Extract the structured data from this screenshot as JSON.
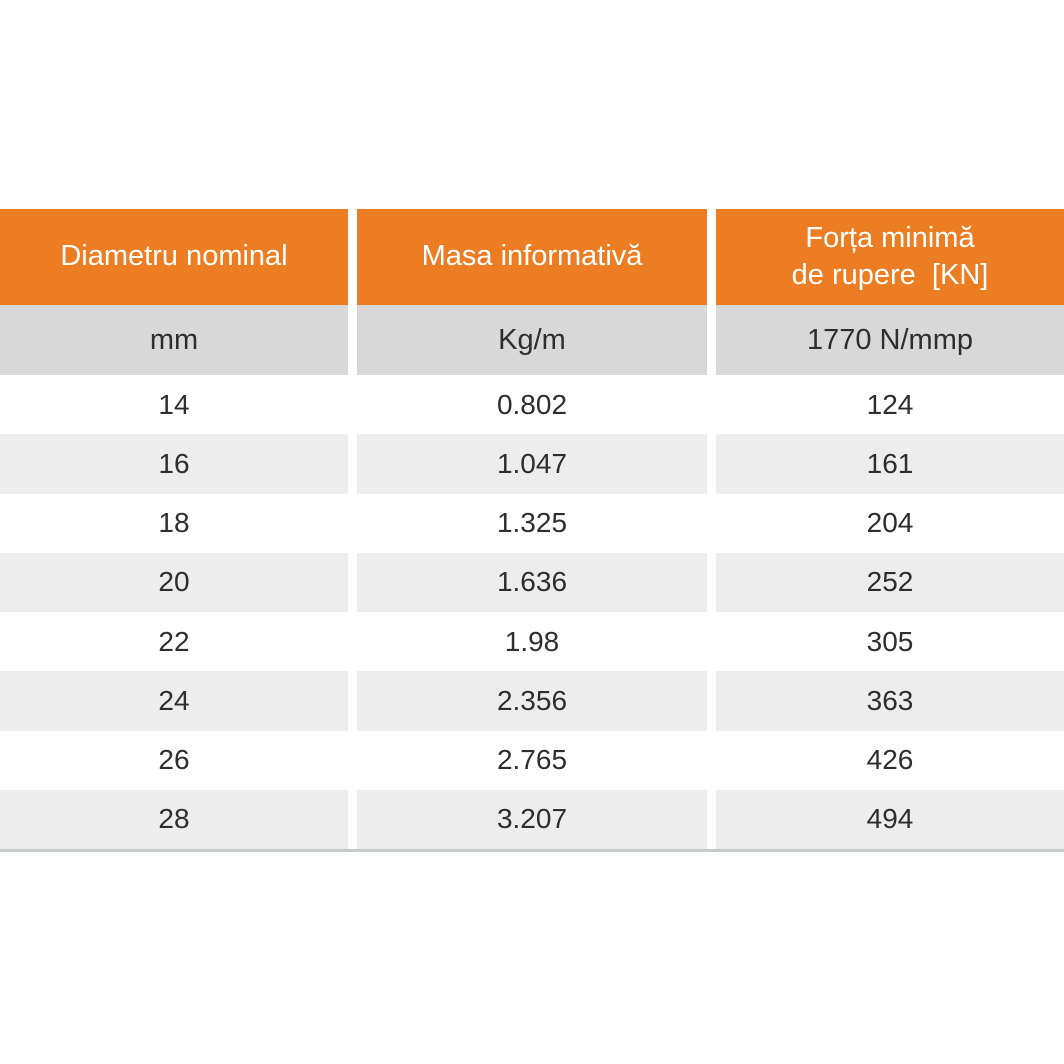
{
  "table": {
    "columns": [
      {
        "header": "Diametru nominal",
        "subheader": "mm"
      },
      {
        "header": "Masa informativă",
        "subheader": "Kg/m"
      },
      {
        "header_line1": "Forța minimă",
        "header_line2": "de rupere  [KN]",
        "subheader": "1770 N/mmp"
      }
    ],
    "rows": [
      [
        "14",
        "0.802",
        "124"
      ],
      [
        "16",
        "1.047",
        "161"
      ],
      [
        "18",
        "1.325",
        "204"
      ],
      [
        "20",
        "1.636",
        "252"
      ],
      [
        "22",
        "1.98",
        "305"
      ],
      [
        "24",
        "2.356",
        "363"
      ],
      [
        "26",
        "2.765",
        "426"
      ],
      [
        "28",
        "3.207",
        "494"
      ]
    ]
  },
  "colors": {
    "header_bg": "#ED7D23",
    "subheader_bg": "#D8D8D8",
    "row_bg": "#FFFFFF",
    "row_alt_bg": "#ECEDEC",
    "header_text": "#FFFFFF",
    "body_text": "#2E2E2E",
    "bottom_border": "#C9CBCA"
  },
  "chart_data": {
    "type": "table",
    "columns": [
      "Diametru nominal (mm)",
      "Masa informativă (Kg/m)",
      "Forța minimă de rupere [KN] (1770 N/mmp)"
    ],
    "rows": [
      [
        14,
        0.802,
        124
      ],
      [
        16,
        1.047,
        161
      ],
      [
        18,
        1.325,
        204
      ],
      [
        20,
        1.636,
        252
      ],
      [
        22,
        1.98,
        305
      ],
      [
        24,
        2.356,
        363
      ],
      [
        26,
        2.765,
        426
      ],
      [
        28,
        3.207,
        494
      ]
    ]
  }
}
